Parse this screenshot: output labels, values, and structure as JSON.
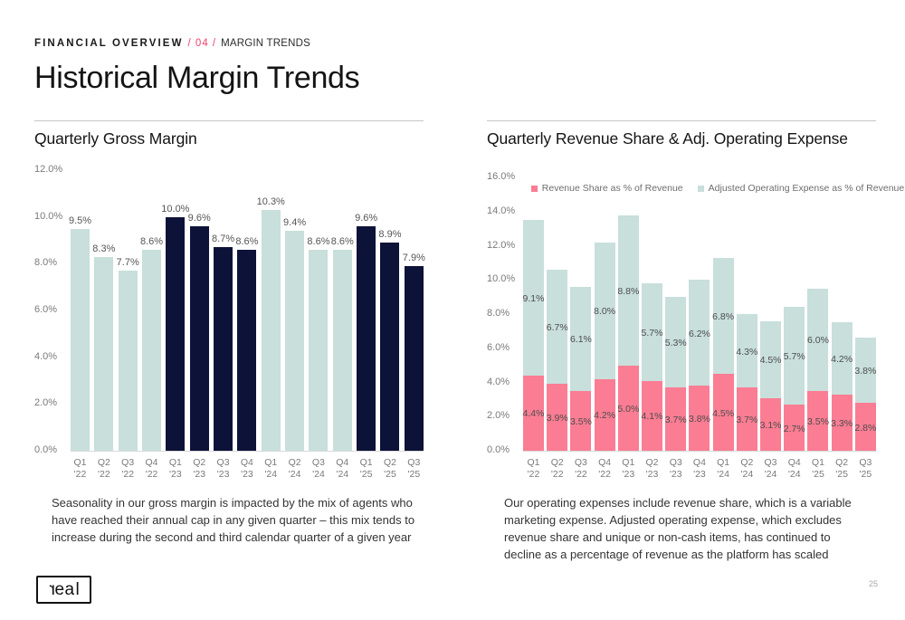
{
  "header": {
    "eyebrow_bold": "FINANCIAL OVERVIEW",
    "eyebrow_section": "/ 04 /",
    "eyebrow_rest": "MARGIN TRENDS",
    "title": "Historical Margin Trends"
  },
  "colors": {
    "navy": "#0d1238",
    "teal": "#c8dfdb",
    "pink": "#fa7d93",
    "accent_pink": "#f0436d"
  },
  "left_panel": {
    "caption": "Seasonality in our gross margin is impacted by the mix of agents who have reached their annual cap in any given quarter – this mix tends to increase during the second and third calendar quarter of a given year"
  },
  "right_panel": {
    "caption": "Our operating expenses include revenue share, which is a variable marketing expense. Adjusted operating expense, which excludes revenue share and unique or non-cash items, has continued to decline as a percentage of revenue as the platform has scaled"
  },
  "chart_data": [
    {
      "type": "bar",
      "title": "Quarterly Gross Margin",
      "categories": [
        "Q1 '22",
        "Q2 '22",
        "Q3 '22",
        "Q4 '22",
        "Q1 '23",
        "Q2 '23",
        "Q3 '23",
        "Q4 '23",
        "Q1 '24",
        "Q2 '24",
        "Q3 '24",
        "Q4 '24",
        "Q1 '25",
        "Q2 '25",
        "Q3 '25"
      ],
      "values": [
        9.5,
        8.3,
        7.7,
        8.6,
        10.0,
        9.6,
        8.7,
        8.6,
        10.3,
        9.4,
        8.6,
        8.6,
        9.6,
        8.9,
        7.9
      ],
      "labels": [
        "9.5%",
        "8.3%",
        "7.7%",
        "8.6%",
        "10.0%",
        "9.6%",
        "8.7%",
        "8.6%",
        "10.3%",
        "9.4%",
        "8.6%",
        "8.6%",
        "9.6%",
        "8.9%",
        "7.9%"
      ],
      "bar_colors": [
        "teal",
        "teal",
        "teal",
        "teal",
        "navy",
        "navy",
        "navy",
        "navy",
        "teal",
        "teal",
        "teal",
        "teal",
        "navy",
        "navy",
        "navy"
      ],
      "xlabel": "",
      "ylabel": "",
      "ylim": [
        0,
        12
      ],
      "yticks": [
        "12.0%",
        "10.0%",
        "8.0%",
        "6.0%",
        "4.0%",
        "2.0%",
        "0.0%"
      ],
      "grid": false,
      "legend_position": "none"
    },
    {
      "type": "bar-stacked",
      "title": "Quarterly Revenue Share & Adj. Operating Expense",
      "categories": [
        "Q1 '22",
        "Q2 '22",
        "Q3 '22",
        "Q4 '22",
        "Q1 '23",
        "Q2 '23",
        "Q3 '23",
        "Q4 '23",
        "Q1 '24",
        "Q2 '24",
        "Q3 '24",
        "Q4 '24",
        "Q1 '25",
        "Q2 '25",
        "Q3 '25"
      ],
      "series": [
        {
          "name": "Revenue Share as % of Revenue",
          "color": "pink",
          "values": [
            4.4,
            3.9,
            3.5,
            4.2,
            5.0,
            4.1,
            3.7,
            3.8,
            4.5,
            3.7,
            3.1,
            2.7,
            3.5,
            3.3,
            2.8
          ],
          "labels": [
            "4.4%",
            "3.9%",
            "3.5%",
            "4.2%",
            "5.0%",
            "4.1%",
            "3.7%",
            "3.8%",
            "4.5%",
            "3.7%",
            "3.1%",
            "2.7%",
            "3.5%",
            "3.3%",
            "2.8%"
          ]
        },
        {
          "name": "Adjusted Operating Expense as % of Revenue",
          "color": "teal",
          "values": [
            9.1,
            6.7,
            6.1,
            8.0,
            8.8,
            5.7,
            5.3,
            6.2,
            6.8,
            4.3,
            4.5,
            5.7,
            6.0,
            4.2,
            3.8
          ],
          "labels": [
            "9.1%",
            "6.7%",
            "6.1%",
            "8.0%",
            "8.8%",
            "5.7%",
            "5.3%",
            "6.2%",
            "6.8%",
            "4.3%",
            "4.5%",
            "5.7%",
            "6.0%",
            "4.2%",
            "3.8%"
          ]
        }
      ],
      "xlabel": "",
      "ylabel": "",
      "ylim": [
        0,
        16
      ],
      "yticks": [
        "16.0%",
        "14.0%",
        "12.0%",
        "10.0%",
        "8.0%",
        "6.0%",
        "4.0%",
        "2.0%",
        "0.0%"
      ],
      "grid": false,
      "legend_position": "top"
    }
  ],
  "footer": {
    "logo_text": "real",
    "page_number": "25"
  }
}
